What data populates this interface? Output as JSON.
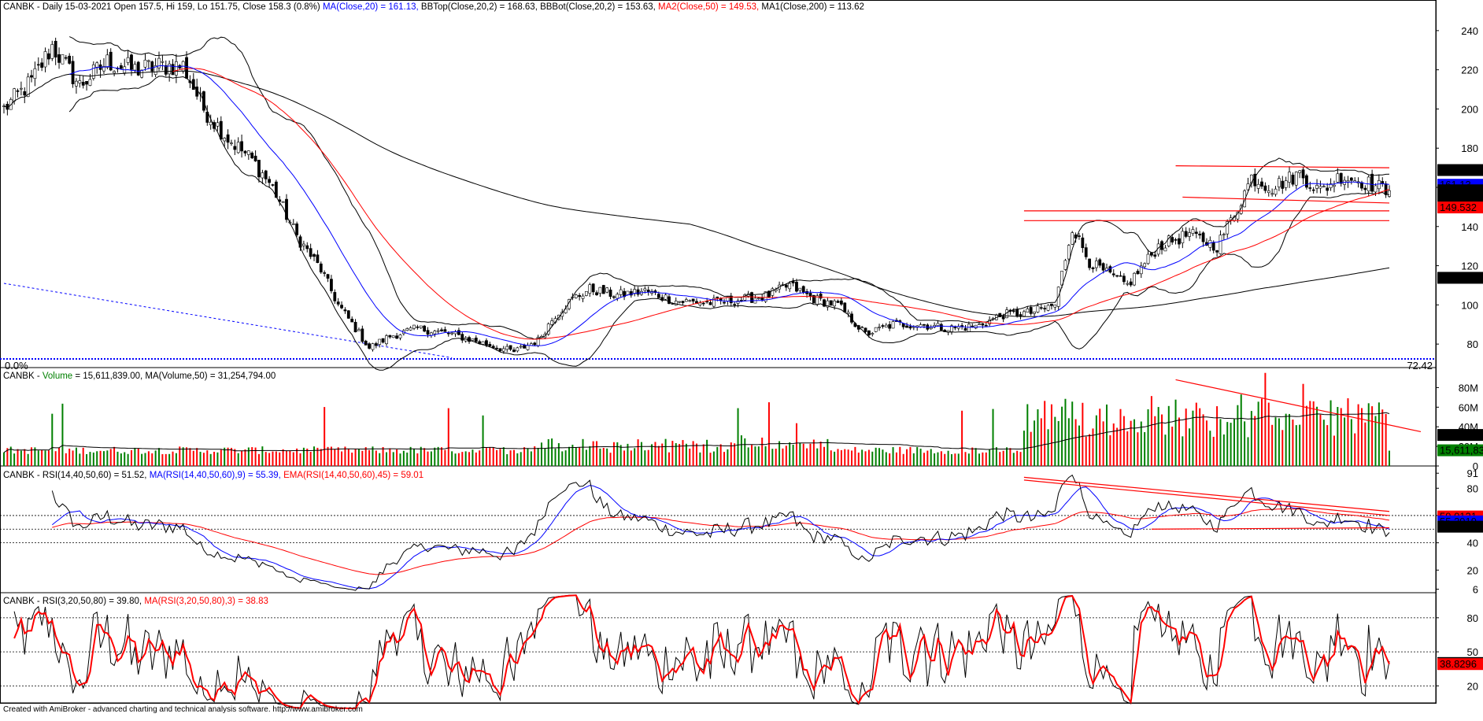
{
  "footer": "Created with AmiBroker - advanced charting and technical analysis software. http://www.amibroker.com",
  "colors": {
    "up": "#000000",
    "down": "#000000",
    "ma20": "#0000ff",
    "ma50": "#ff0000",
    "ma200": "#000000",
    "bb": "#000000",
    "vol_up": "#008000",
    "vol_down": "#ff0000",
    "rsi": "#000000",
    "rsi_ma": "#0000ff",
    "rsi_ema": "#ff0000",
    "stoch_ma": "#ff0000",
    "trend": "#ff0000",
    "fib": "#0000ff"
  },
  "chart_data": [
    {
      "panel": "price",
      "type": "candlestick",
      "title_parts": [
        {
          "text": "CANBK - Daily 15-03-2021 Open 157.5, Hi 159, Lo 151.75, Close 158.3 (0.8%) ",
          "color": "#000000"
        },
        {
          "text": "MA(Close,20) = 161.13, ",
          "color": "#0000ff"
        },
        {
          "text": "BBTop(Close,20,2) = 168.63, BBBot(Close,20,2) = 153.63, ",
          "color": "#000000"
        },
        {
          "text": "MA2(Close,50) = 149.53, ",
          "color": "#ff0000"
        },
        {
          "text": "MA1(Close,200) = 113.62",
          "color": "#000000"
        }
      ],
      "ylim": [
        68,
        250
      ],
      "ticks": [
        80,
        100,
        120,
        140,
        160,
        180,
        200,
        220,
        240
      ],
      "close_anchors": [
        [
          0,
          200
        ],
        [
          8,
          214
        ],
        [
          14,
          232
        ],
        [
          22,
          212
        ],
        [
          30,
          224
        ],
        [
          38,
          220
        ],
        [
          45,
          222
        ],
        [
          52,
          222
        ],
        [
          58,
          200
        ],
        [
          65,
          185
        ],
        [
          72,
          174
        ],
        [
          78,
          160
        ],
        [
          85,
          135
        ],
        [
          92,
          118
        ],
        [
          97,
          100
        ],
        [
          102,
          88
        ],
        [
          106,
          78
        ],
        [
          112,
          84
        ],
        [
          120,
          88
        ],
        [
          130,
          85
        ],
        [
          140,
          80
        ],
        [
          148,
          76
        ],
        [
          155,
          82
        ],
        [
          160,
          95
        ],
        [
          165,
          103
        ],
        [
          170,
          108
        ],
        [
          178,
          105
        ],
        [
          186,
          107
        ],
        [
          195,
          102
        ],
        [
          205,
          101
        ],
        [
          215,
          103
        ],
        [
          222,
          105
        ],
        [
          228,
          110
        ],
        [
          235,
          103
        ],
        [
          242,
          100
        ],
        [
          250,
          85
        ],
        [
          258,
          90
        ],
        [
          266,
          90
        ],
        [
          274,
          88
        ],
        [
          282,
          89
        ],
        [
          290,
          95
        ],
        [
          298,
          96
        ],
        [
          305,
          100
        ],
        [
          310,
          140
        ],
        [
          315,
          122
        ],
        [
          320,
          116
        ],
        [
          326,
          110
        ],
        [
          335,
          130
        ],
        [
          344,
          136
        ],
        [
          352,
          130
        ],
        [
          358,
          150
        ],
        [
          362,
          165
        ],
        [
          368,
          160
        ],
        [
          376,
          167
        ],
        [
          382,
          158
        ],
        [
          388,
          166
        ],
        [
          396,
          162
        ],
        [
          402,
          158
        ]
      ],
      "n": 403,
      "last_values": {
        "bbtop": 168.626,
        "ma20": 161.13,
        "close": 158.3,
        "bbbot": 153.634,
        "ma50": 149.532,
        "ma200": 113.617
      },
      "value_labels": [
        "168.626",
        "161.13",
        "158.3",
        "153.634",
        "149.532",
        "113.617"
      ],
      "fib_labels": {
        "left": "0.0%",
        "right": "72.42"
      },
      "fib_level": 72.42,
      "fib_diag": {
        "x1": 0,
        "y1": 111,
        "x2": 130,
        "y2": 73
      },
      "trendlines": [
        {
          "x1": 340,
          "y1": 171,
          "x2": 402,
          "y2": 170
        },
        {
          "x1": 342,
          "y1": 155,
          "x2": 402,
          "y2": 152
        },
        {
          "x1": 296,
          "y1": 148,
          "x2": 402,
          "y2": 148
        },
        {
          "x1": 296,
          "y1": 143,
          "x2": 402,
          "y2": 143
        }
      ]
    },
    {
      "panel": "volume",
      "type": "bar",
      "title_parts": [
        {
          "text": "CANBK - ",
          "color": "#000000"
        },
        {
          "text": "Volume",
          "color": "#008000"
        },
        {
          "text": " = 15,611,839.00, MA(Volume,50) = 31,254,794.00",
          "color": "#000000"
        }
      ],
      "ylim": [
        0,
        98
      ],
      "ticks": [
        0,
        20,
        40,
        60,
        80
      ],
      "tick_labels": [
        "0",
        "20M",
        "40M",
        "60M",
        "80M"
      ],
      "last_values": {
        "ma": 31.25,
        "vol": 15.61
      },
      "value_labels": [
        "31,254,79",
        "15,611,83"
      ],
      "trendlines": [
        {
          "x1": 340,
          "y1": 88,
          "x2": 402,
          "y2": 35
        }
      ]
    },
    {
      "panel": "rsi_14",
      "type": "line",
      "title_parts": [
        {
          "text": "CANBK - RSI(14,40,50,60) = 51.52, ",
          "color": "#000000"
        },
        {
          "text": "MA(RSI(14,40,50,60),9) = 55.39, ",
          "color": "#0000ff"
        },
        {
          "text": "EMA(RSI(14,40,50,60),45) = 59.01",
          "color": "#ff0000"
        }
      ],
      "ylim": [
        4,
        94
      ],
      "ticks": [
        6,
        20,
        40,
        60,
        80,
        91
      ],
      "dotted_levels": [
        40,
        50,
        60
      ],
      "last_values": {
        "ema": 59.01,
        "ma": 55.39,
        "rsi": 51.52
      },
      "value_labels": [
        "59.0121",
        "55.3919",
        "51.5202"
      ],
      "trendlines": [
        {
          "x1": 296,
          "y1": 88,
          "x2": 402,
          "y2": 63
        },
        {
          "x1": 296,
          "y1": 86,
          "x2": 402,
          "y2": 60
        },
        {
          "x1": 333,
          "y1": 50,
          "x2": 402,
          "y2": 51
        }
      ]
    },
    {
      "panel": "rsi_3",
      "type": "line",
      "title_parts": [
        {
          "text": "CANBK - RSI(3,20,50,80) = 39.80, ",
          "color": "#000000"
        },
        {
          "text": "MA(RSI(3,20,50,80),3) = 38.83",
          "color": "#ff0000"
        }
      ],
      "ylim": [
        5,
        100
      ],
      "ticks": [
        20,
        50,
        80
      ],
      "dotted_levels": [
        20,
        50,
        80
      ],
      "last_values": {
        "rsi": 39.8,
        "ma": 38.83
      },
      "value_labels": [
        "39.8007",
        "38.8296"
      ]
    }
  ]
}
